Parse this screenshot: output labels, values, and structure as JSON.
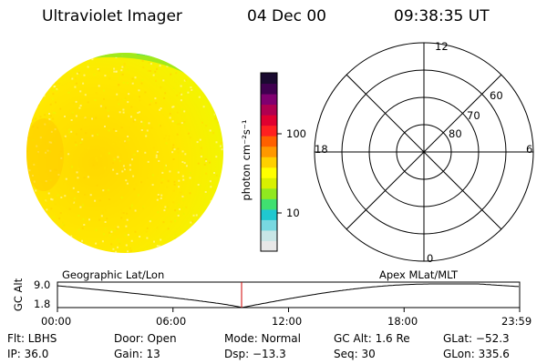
{
  "header": {
    "instrument": "Ultraviolet Imager",
    "date": "04 Dec 00",
    "time": "09:38:35 UT"
  },
  "colorbar": {
    "unit_label": "photon cm⁻²s⁻¹",
    "tick_100": "100",
    "tick_10": "10",
    "colors": [
      "#e8e8e8",
      "#c8e6e6",
      "#78d8e0",
      "#20c8d0",
      "#40e070",
      "#90e820",
      "#d8f000",
      "#ffff00",
      "#ffd000",
      "#ff9800",
      "#ff6000",
      "#ff2020",
      "#e00030",
      "#b00050",
      "#800070",
      "#400050",
      "#1a0a30"
    ]
  },
  "polar_grid": {
    "mlt_labels": {
      "top": "12",
      "left": "18",
      "right": "6",
      "bottom": "0"
    },
    "lat_labels": [
      "60",
      "70",
      "80"
    ]
  },
  "timeline": {
    "left_title": "Geographic Lat/Lon",
    "right_title": "Apex MLat/MLT",
    "axis_label": "GC Alt",
    "y_top": "9.0",
    "y_bottom": "1.8",
    "x_ticks": [
      "00:00",
      "06:00",
      "12:00",
      "18:00",
      "23:59"
    ]
  },
  "status": {
    "flt": "Flt: LBHS",
    "ip": "IP: 36.0",
    "door": "Door: Open",
    "gain": "Gain: 13",
    "mode": "Mode: Normal",
    "dsp": "Dsp:  −13.3",
    "gc_alt": "GC Alt: 1.6 Re",
    "seq": "Seq: 30",
    "glat": "GLat: −52.3",
    "glon": "GLon: 335.6"
  }
}
